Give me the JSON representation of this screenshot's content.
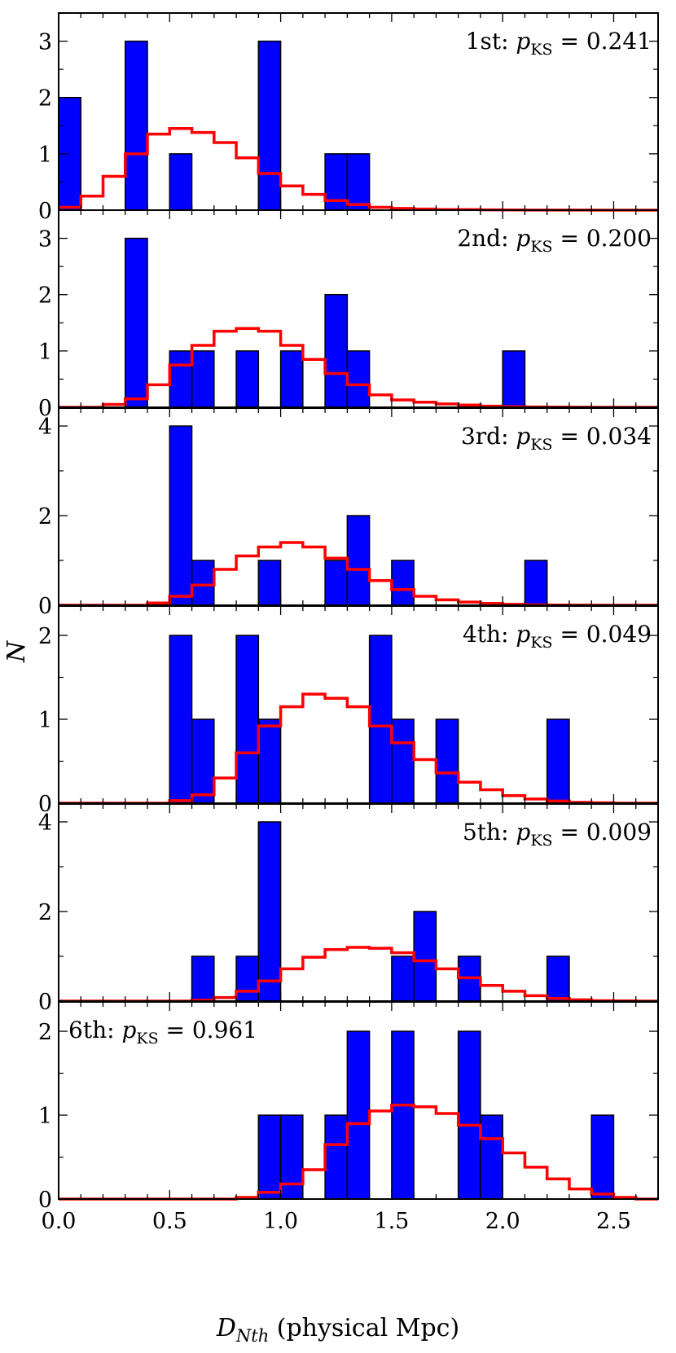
{
  "figure": {
    "xlabel_main": "D",
    "xlabel_sub": "Nth",
    "xlabel_rest": " (physical Mpc)",
    "ylabel": "N"
  },
  "colors": {
    "bar_fill": "#0000ff",
    "bar_edge": "#000000",
    "model_line": "#ff0000"
  },
  "chart_data": [
    {
      "type": "bar",
      "panel": "1st",
      "annotation": {
        "prefix": "1st: ",
        "p": "p",
        "sub": "KS",
        "rest": " = 0.241"
      },
      "annotation_position": "top-right",
      "xlim": [
        0,
        2.7
      ],
      "ylim": [
        0,
        3.5
      ],
      "yticks": [
        0,
        1,
        2,
        3
      ],
      "bin_width": 0.1,
      "bins": [
        [
          0.0,
          2
        ],
        [
          0.3,
          3
        ],
        [
          0.5,
          1
        ],
        [
          0.9,
          3
        ],
        [
          1.2,
          1
        ],
        [
          1.3,
          1
        ]
      ],
      "model": {
        "x_start": 0.0,
        "values": [
          0.05,
          0.25,
          0.6,
          1.0,
          1.35,
          1.45,
          1.38,
          1.2,
          0.93,
          0.65,
          0.43,
          0.28,
          0.17,
          0.1,
          0.05,
          0.03,
          0.02,
          0.01,
          0.01,
          0.005,
          0.003,
          0.002,
          0.001,
          0.001,
          0.0,
          0.0,
          0.0
        ]
      }
    },
    {
      "type": "bar",
      "panel": "2nd",
      "annotation": {
        "prefix": "2nd: ",
        "p": "p",
        "sub": "KS",
        "rest": " = 0.200"
      },
      "annotation_position": "top-right",
      "xlim": [
        0,
        2.7
      ],
      "ylim": [
        0,
        3.5
      ],
      "yticks": [
        0,
        1,
        2,
        3
      ],
      "bin_width": 0.1,
      "bins": [
        [
          0.3,
          3
        ],
        [
          0.5,
          1
        ],
        [
          0.6,
          1
        ],
        [
          0.8,
          1
        ],
        [
          1.0,
          1
        ],
        [
          1.2,
          2
        ],
        [
          1.3,
          1
        ],
        [
          2.0,
          1
        ]
      ],
      "model": {
        "x_start": 0.0,
        "values": [
          0.0,
          0.0,
          0.05,
          0.15,
          0.4,
          0.75,
          1.1,
          1.35,
          1.4,
          1.35,
          1.1,
          0.85,
          0.6,
          0.4,
          0.22,
          0.13,
          0.09,
          0.06,
          0.04,
          0.02,
          0.01,
          0.005,
          0.003,
          0.001,
          0.0,
          0.0,
          0.0
        ]
      }
    },
    {
      "type": "bar",
      "panel": "3rd",
      "annotation": {
        "prefix": "3rd: ",
        "p": "p",
        "sub": "KS",
        "rest": " = 0.034"
      },
      "annotation_position": "top-right",
      "xlim": [
        0,
        2.7
      ],
      "ylim": [
        0,
        4.4
      ],
      "yticks": [
        0,
        2,
        4
      ],
      "bin_width": 0.1,
      "bins": [
        [
          0.5,
          4
        ],
        [
          0.6,
          1
        ],
        [
          0.9,
          1
        ],
        [
          1.2,
          1
        ],
        [
          1.3,
          2
        ],
        [
          1.5,
          1
        ],
        [
          2.1,
          1
        ]
      ],
      "model": {
        "x_start": 0.0,
        "values": [
          0.0,
          0.0,
          0.0,
          0.0,
          0.05,
          0.2,
          0.45,
          0.8,
          1.1,
          1.3,
          1.4,
          1.3,
          1.05,
          0.8,
          0.55,
          0.35,
          0.2,
          0.12,
          0.07,
          0.04,
          0.02,
          0.01,
          0.005,
          0.002,
          0.0,
          0.0,
          0.0
        ]
      }
    },
    {
      "type": "bar",
      "panel": "4th",
      "annotation": {
        "prefix": "4th: ",
        "p": "p",
        "sub": "KS",
        "rest": " = 0.049"
      },
      "annotation_position": "top-right",
      "xlim": [
        0,
        2.7
      ],
      "ylim": [
        0,
        2.35
      ],
      "yticks": [
        0,
        1,
        2
      ],
      "bin_width": 0.1,
      "bins": [
        [
          0.5,
          2
        ],
        [
          0.6,
          1
        ],
        [
          0.8,
          2
        ],
        [
          0.9,
          1
        ],
        [
          1.4,
          2
        ],
        [
          1.5,
          1
        ],
        [
          1.7,
          1
        ],
        [
          2.2,
          1
        ]
      ],
      "model": {
        "x_start": 0.0,
        "values": [
          0.0,
          0.0,
          0.0,
          0.0,
          0.0,
          0.03,
          0.1,
          0.3,
          0.6,
          0.92,
          1.15,
          1.3,
          1.25,
          1.15,
          0.92,
          0.72,
          0.52,
          0.36,
          0.25,
          0.16,
          0.09,
          0.05,
          0.025,
          0.01,
          0.005,
          0.0,
          0.0
        ]
      }
    },
    {
      "type": "bar",
      "panel": "5th",
      "annotation": {
        "prefix": "5th: ",
        "p": "p",
        "sub": "KS",
        "rest": " = 0.009"
      },
      "annotation_position": "top-right",
      "xlim": [
        0,
        2.7
      ],
      "ylim": [
        0,
        4.4
      ],
      "yticks": [
        0,
        2,
        4
      ],
      "bin_width": 0.1,
      "bins": [
        [
          0.6,
          1
        ],
        [
          0.8,
          1
        ],
        [
          0.9,
          4
        ],
        [
          1.5,
          1
        ],
        [
          1.6,
          2
        ],
        [
          1.8,
          1
        ],
        [
          2.2,
          1
        ]
      ],
      "model": {
        "x_start": 0.0,
        "values": [
          0.0,
          0.0,
          0.0,
          0.0,
          0.0,
          0.0,
          0.02,
          0.08,
          0.22,
          0.45,
          0.72,
          0.98,
          1.15,
          1.2,
          1.18,
          1.08,
          0.9,
          0.72,
          0.52,
          0.35,
          0.22,
          0.12,
          0.06,
          0.03,
          0.01,
          0.005,
          0.0
        ]
      }
    },
    {
      "type": "bar",
      "panel": "6th",
      "annotation": {
        "prefix": "6th: ",
        "p": "p",
        "sub": "KS",
        "rest": " = 0.961"
      },
      "annotation_position": "top-left",
      "xlim": [
        0,
        2.7
      ],
      "ylim": [
        0,
        2.35
      ],
      "yticks": [
        0,
        1,
        2
      ],
      "xticks": [
        0.0,
        0.5,
        1.0,
        1.5,
        2.0,
        2.5
      ],
      "xtick_labels": [
        "0.0",
        "0.5",
        "1.0",
        "1.5",
        "2.0",
        "2.5"
      ],
      "bin_width": 0.1,
      "bins": [
        [
          0.9,
          1
        ],
        [
          1.0,
          1
        ],
        [
          1.2,
          1
        ],
        [
          1.3,
          2
        ],
        [
          1.5,
          2
        ],
        [
          1.8,
          2
        ],
        [
          1.9,
          1
        ],
        [
          2.4,
          1
        ]
      ],
      "model": {
        "x_start": 0.0,
        "values": [
          0.0,
          0.0,
          0.0,
          0.0,
          0.0,
          0.0,
          0.0,
          0.0,
          0.02,
          0.08,
          0.18,
          0.35,
          0.65,
          0.9,
          1.05,
          1.12,
          1.1,
          1.02,
          0.88,
          0.72,
          0.55,
          0.38,
          0.24,
          0.12,
          0.06,
          0.02,
          0.0
        ]
      }
    }
  ]
}
